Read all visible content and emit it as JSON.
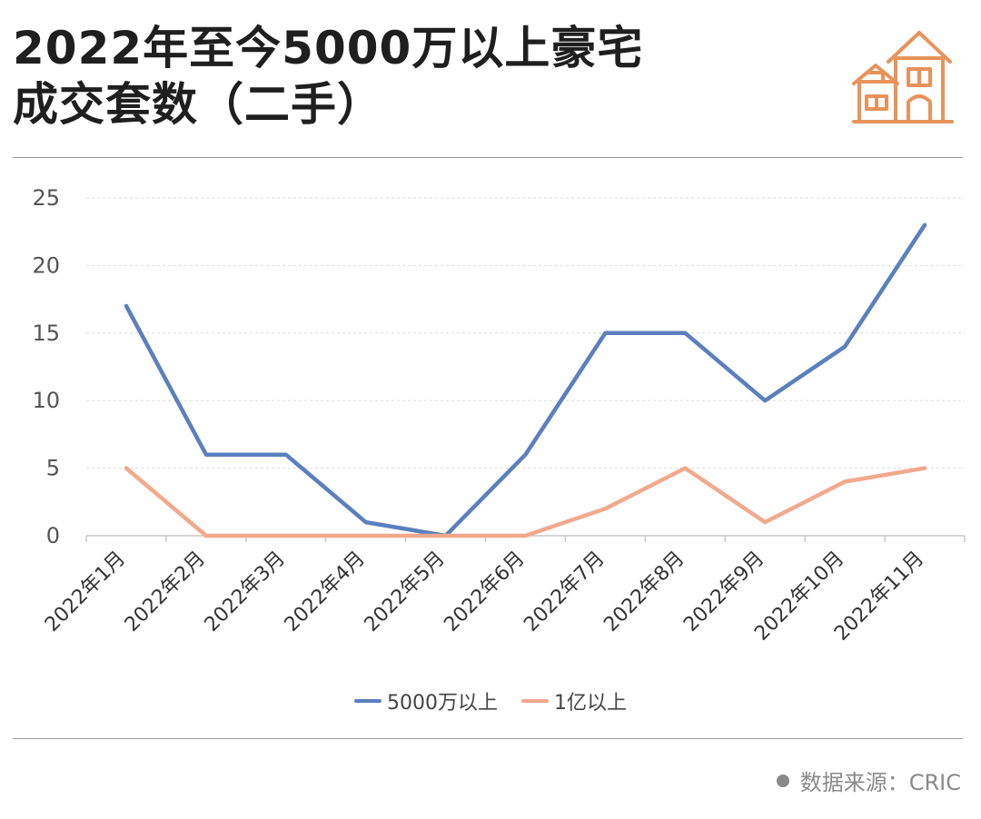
{
  "header": {
    "title_line1": "2022年至今5000万以上豪宅",
    "title_line2": "成交套数（二手）"
  },
  "logo": {
    "icon": "house-icon",
    "color": "#E8935A"
  },
  "chart_data": {
    "type": "line",
    "title": "2022年至今5000万以上豪宅成交套数（二手）",
    "xlabel": "",
    "ylabel": "",
    "categories": [
      "2022年1月",
      "2022年2月",
      "2022年3月",
      "2022年4月",
      "2022年5月",
      "2022年6月",
      "2022年7月",
      "2022年8月",
      "2022年9月",
      "2022年10月",
      "2022年11月"
    ],
    "ylim": [
      0,
      25
    ],
    "yticks": [
      0,
      5,
      10,
      15,
      20,
      25
    ],
    "grid": true,
    "legend_position": "bottom",
    "series": [
      {
        "name": "5000万以上",
        "color": "#5B7FBF",
        "values": [
          17,
          6,
          6,
          1,
          0,
          6,
          15,
          15,
          10,
          14,
          23
        ]
      },
      {
        "name": "1亿以上",
        "color": "#F2A98C",
        "values": [
          5,
          0,
          0,
          0,
          0,
          0,
          2,
          5,
          1,
          4,
          5
        ]
      }
    ]
  },
  "footer": {
    "source": "数据来源：CRIC"
  }
}
